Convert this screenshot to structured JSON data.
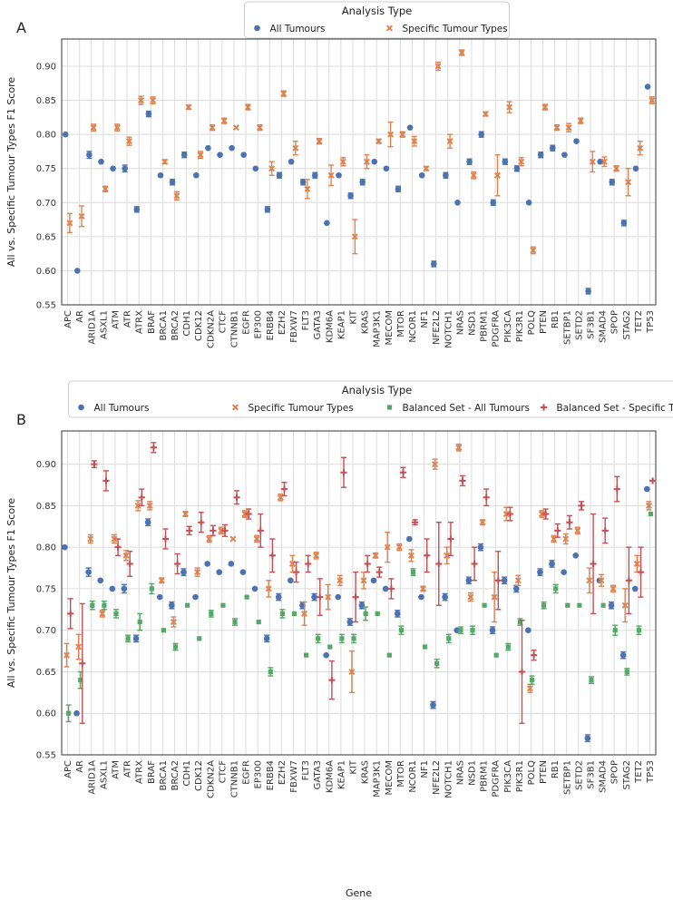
{
  "figure": {
    "colors": {
      "all_tumours": "#4c72b0",
      "specific": "#dd8452",
      "balanced_all": "#55a868",
      "balanced_specific": "#c44e52",
      "grid": "#dcdcdc",
      "axis": "#333333"
    }
  },
  "chart_data": [
    {
      "panel": "A",
      "type": "scatter",
      "title": "",
      "legend_title": "Analysis Type",
      "legend_position": "top-center",
      "xlabel": "",
      "ylabel": "All vs. Specific Tumour Types F1 Score",
      "ylim": [
        0.55,
        0.94
      ],
      "yticks": [
        0.55,
        0.6,
        0.65,
        0.7,
        0.75,
        0.8,
        0.85,
        0.9
      ],
      "grid": true,
      "categories": [
        "APC",
        "AR",
        "ARID1A",
        "ASXL1",
        "ATM",
        "ATR",
        "ATRX",
        "BRAF",
        "BRCA1",
        "BRCA2",
        "CDH1",
        "CDK12",
        "CDKN2A",
        "CTCF",
        "CTNNB1",
        "EGFR",
        "EP300",
        "ERBB4",
        "EZH2",
        "FBXW7",
        "FLT3",
        "GATA3",
        "KDM6A",
        "KEAP1",
        "KIT",
        "KRAS",
        "MAP3K1",
        "MECOM",
        "MTOR",
        "NCOR1",
        "NF1",
        "NFE2L2",
        "NOTCH1",
        "NRAS",
        "NSD1",
        "PBRM1",
        "PDGFRA",
        "PIK3CA",
        "PIK3R1",
        "POLQ",
        "PTEN",
        "RB1",
        "SETBP1",
        "SETD2",
        "SF3B1",
        "SMAD4",
        "SPOP",
        "STAG2",
        "TET2",
        "TP53"
      ],
      "series": [
        {
          "name": "All Tumours",
          "marker": "circle",
          "color": "#4c72b0",
          "values": [
            0.8,
            0.6,
            0.77,
            0.76,
            0.75,
            0.75,
            0.69,
            0.83,
            0.74,
            0.73,
            0.77,
            0.74,
            0.78,
            0.77,
            0.78,
            0.77,
            0.75,
            0.69,
            0.74,
            0.76,
            0.73,
            0.74,
            0.67,
            0.74,
            0.71,
            0.73,
            0.76,
            0.75,
            0.72,
            0.81,
            0.74,
            0.61,
            0.74,
            0.7,
            0.76,
            0.8,
            0.7,
            0.76,
            0.75,
            0.7,
            0.77,
            0.78,
            0.77,
            0.79,
            0.57,
            0.76,
            0.73,
            0.67,
            0.75,
            0.87
          ],
          "errors": [
            0,
            0,
            0.005,
            0,
            0,
            0.005,
            0.004,
            0.004,
            0,
            0.004,
            0.004,
            0,
            0,
            0,
            0,
            0,
            0,
            0.004,
            0.004,
            0,
            0.004,
            0.004,
            0,
            0,
            0.004,
            0.004,
            0,
            0,
            0.004,
            0,
            0,
            0.004,
            0.004,
            0,
            0.004,
            0.004,
            0.004,
            0.004,
            0.004,
            0,
            0.004,
            0.004,
            0,
            0,
            0.004,
            0,
            0.004,
            0.004,
            0,
            0
          ]
        },
        {
          "name": "Specific Tumour Types",
          "marker": "x",
          "color": "#dd8452",
          "values": [
            0.67,
            0.68,
            0.81,
            0.72,
            0.81,
            0.79,
            0.85,
            0.85,
            0.76,
            0.71,
            0.84,
            0.77,
            0.81,
            0.82,
            0.81,
            0.84,
            0.81,
            0.75,
            0.86,
            0.78,
            0.72,
            0.79,
            0.74,
            0.76,
            0.65,
            0.76,
            0.79,
            0.8,
            0.8,
            0.79,
            0.75,
            0.9,
            0.79,
            0.92,
            0.74,
            0.83,
            0.74,
            0.84,
            0.76,
            0.63,
            0.84,
            0.81,
            0.81,
            0.82,
            0.76,
            0.76,
            0.75,
            0.73,
            0.78,
            0.85
          ],
          "errors": [
            0.014,
            0.015,
            0.005,
            0.004,
            0.005,
            0.006,
            0.006,
            0.005,
            0.003,
            0.006,
            0.003,
            0.005,
            0.004,
            0.004,
            0,
            0.004,
            0.004,
            0.01,
            0.004,
            0.01,
            0.014,
            0.004,
            0.015,
            0.006,
            0.025,
            0.01,
            0.003,
            0.018,
            0.004,
            0.007,
            0.003,
            0.006,
            0.01,
            0.004,
            0.005,
            0.003,
            0.03,
            0.008,
            0.006,
            0.005,
            0.004,
            0.004,
            0.006,
            0.004,
            0.015,
            0.007,
            0.004,
            0.02,
            0.01,
            0.005
          ]
        }
      ]
    },
    {
      "panel": "B",
      "type": "scatter",
      "title": "",
      "legend_title": "Analysis Type",
      "legend_position": "top-center",
      "xlabel": "Gene",
      "ylabel": "All vs. Specific Tumour Types F1 Score",
      "ylim": [
        0.55,
        0.94
      ],
      "yticks": [
        0.55,
        0.6,
        0.65,
        0.7,
        0.75,
        0.8,
        0.85,
        0.9
      ],
      "grid": true,
      "categories": [
        "APC",
        "AR",
        "ARID1A",
        "ASXL1",
        "ATM",
        "ATR",
        "ATRX",
        "BRAF",
        "BRCA1",
        "BRCA2",
        "CDH1",
        "CDK12",
        "CDKN2A",
        "CTCF",
        "CTNNB1",
        "EGFR",
        "EP300",
        "ERBB4",
        "EZH2",
        "FBXW7",
        "FLT3",
        "GATA3",
        "KDM6A",
        "KEAP1",
        "KIT",
        "KRAS",
        "MAP3K1",
        "MECOM",
        "MTOR",
        "NCOR1",
        "NF1",
        "NFE2L2",
        "NOTCH1",
        "NRAS",
        "NSD1",
        "PBRM1",
        "PDGFRA",
        "PIK3CA",
        "PIK3R1",
        "POLQ",
        "PTEN",
        "RB1",
        "SETBP1",
        "SETD2",
        "SF3B1",
        "SMAD4",
        "SPOP",
        "STAG2",
        "TET2",
        "TP53"
      ],
      "series": [
        {
          "name": "All Tumours",
          "marker": "circle",
          "color": "#4c72b0",
          "values": [
            0.8,
            0.6,
            0.77,
            0.76,
            0.75,
            0.75,
            0.69,
            0.83,
            0.74,
            0.73,
            0.77,
            0.74,
            0.78,
            0.77,
            0.78,
            0.77,
            0.75,
            0.69,
            0.74,
            0.76,
            0.73,
            0.74,
            0.67,
            0.74,
            0.71,
            0.73,
            0.76,
            0.75,
            0.72,
            0.81,
            0.74,
            0.61,
            0.74,
            0.7,
            0.76,
            0.8,
            0.7,
            0.76,
            0.75,
            0.7,
            0.77,
            0.78,
            0.77,
            0.79,
            0.57,
            0.76,
            0.73,
            0.67,
            0.75,
            0.87
          ],
          "errors": [
            0,
            0,
            0.005,
            0,
            0,
            0.005,
            0.004,
            0.004,
            0,
            0.004,
            0.004,
            0,
            0,
            0,
            0,
            0,
            0,
            0.004,
            0.004,
            0,
            0.004,
            0.004,
            0,
            0,
            0.004,
            0.004,
            0,
            0,
            0.004,
            0,
            0,
            0.004,
            0.004,
            0,
            0.004,
            0.004,
            0.004,
            0.004,
            0.004,
            0,
            0.004,
            0.004,
            0,
            0,
            0.004,
            0,
            0.004,
            0.004,
            0,
            0
          ]
        },
        {
          "name": "Specific Tumour Types",
          "marker": "x",
          "color": "#dd8452",
          "values": [
            0.67,
            0.68,
            0.81,
            0.72,
            0.81,
            0.79,
            0.85,
            0.85,
            0.76,
            0.71,
            0.84,
            0.77,
            0.81,
            0.82,
            0.81,
            0.84,
            0.81,
            0.75,
            0.86,
            0.78,
            0.72,
            0.79,
            0.74,
            0.76,
            0.65,
            0.76,
            0.79,
            0.8,
            0.8,
            0.79,
            0.75,
            0.9,
            0.79,
            0.92,
            0.74,
            0.83,
            0.74,
            0.84,
            0.76,
            0.63,
            0.84,
            0.81,
            0.81,
            0.82,
            0.76,
            0.76,
            0.75,
            0.73,
            0.78,
            0.85
          ],
          "errors": [
            0.014,
            0.015,
            0.005,
            0.004,
            0.005,
            0.006,
            0.006,
            0.005,
            0.003,
            0.006,
            0.003,
            0.005,
            0.004,
            0.004,
            0,
            0.004,
            0.004,
            0.01,
            0.004,
            0.01,
            0.014,
            0.004,
            0.015,
            0.006,
            0.025,
            0.01,
            0.003,
            0.018,
            0.004,
            0.007,
            0.003,
            0.006,
            0.01,
            0.004,
            0.005,
            0.003,
            0.03,
            0.008,
            0.006,
            0.005,
            0.004,
            0.004,
            0.006,
            0.004,
            0.015,
            0.007,
            0.004,
            0.02,
            0.01,
            0.005
          ]
        },
        {
          "name": "Balanced Set - All Tumours",
          "marker": "square",
          "color": "#55a868",
          "values": [
            0.6,
            0.64,
            0.73,
            0.73,
            0.72,
            0.69,
            0.71,
            0.75,
            0.7,
            0.68,
            0.73,
            0.69,
            0.72,
            0.73,
            0.71,
            0.74,
            0.71,
            0.65,
            0.72,
            0.72,
            0.67,
            0.69,
            0.68,
            0.69,
            0.69,
            0.72,
            0.72,
            0.67,
            0.7,
            0.77,
            0.68,
            0.66,
            0.69,
            0.7,
            0.7,
            0.73,
            0.67,
            0.68,
            0.71,
            0.64,
            0.73,
            0.75,
            0.73,
            0.73,
            0.64,
            0.73,
            0.7,
            0.65,
            0.7,
            0.84
          ],
          "errors": [
            0.01,
            0.01,
            0.005,
            0.005,
            0.005,
            0.004,
            0.01,
            0.006,
            0,
            0.004,
            0,
            0,
            0.004,
            0,
            0.004,
            0,
            0,
            0.005,
            0.005,
            0,
            0,
            0.005,
            0,
            0.005,
            0.005,
            0.008,
            0,
            0,
            0.005,
            0.004,
            0,
            0.005,
            0.005,
            0.004,
            0.005,
            0,
            0,
            0.004,
            0.004,
            0.005,
            0.004,
            0.005,
            0,
            0,
            0.004,
            0,
            0.006,
            0.004,
            0.005,
            0
          ]
        },
        {
          "name": "Balanced Set - Specific Tumours",
          "marker": "plus",
          "color": "#c44e52",
          "values": [
            0.72,
            0.66,
            0.9,
            0.88,
            0.8,
            0.78,
            0.86,
            0.92,
            0.81,
            0.78,
            0.82,
            0.83,
            0.82,
            0.82,
            0.86,
            0.84,
            0.82,
            0.79,
            0.87,
            0.77,
            0.78,
            0.74,
            0.64,
            0.89,
            0.74,
            0.78,
            0.77,
            0.75,
            0.89,
            0.83,
            0.79,
            0.78,
            0.81,
            0.88,
            0.78,
            0.86,
            0.76,
            0.84,
            0.65,
            0.67,
            0.84,
            0.82,
            0.83,
            0.85,
            0.78,
            0.82,
            0.87,
            0.76,
            0.77,
            0.88
          ],
          "errors": [
            0.018,
            0.072,
            0.004,
            0.012,
            0.01,
            0.015,
            0.01,
            0.006,
            0.012,
            0.012,
            0.005,
            0.012,
            0.006,
            0.007,
            0.008,
            0.006,
            0.02,
            0.02,
            0.008,
            0.012,
            0.01,
            0.022,
            0.023,
            0.018,
            0.03,
            0.01,
            0.006,
            0.012,
            0.006,
            0.003,
            0.02,
            0.05,
            0.02,
            0.006,
            0.02,
            0.01,
            0.035,
            0.008,
            0.062,
            0.006,
            0.006,
            0.008,
            0.008,
            0.005,
            0.06,
            0.015,
            0.015,
            0.04,
            0.03,
            0
          ]
        }
      ]
    }
  ]
}
